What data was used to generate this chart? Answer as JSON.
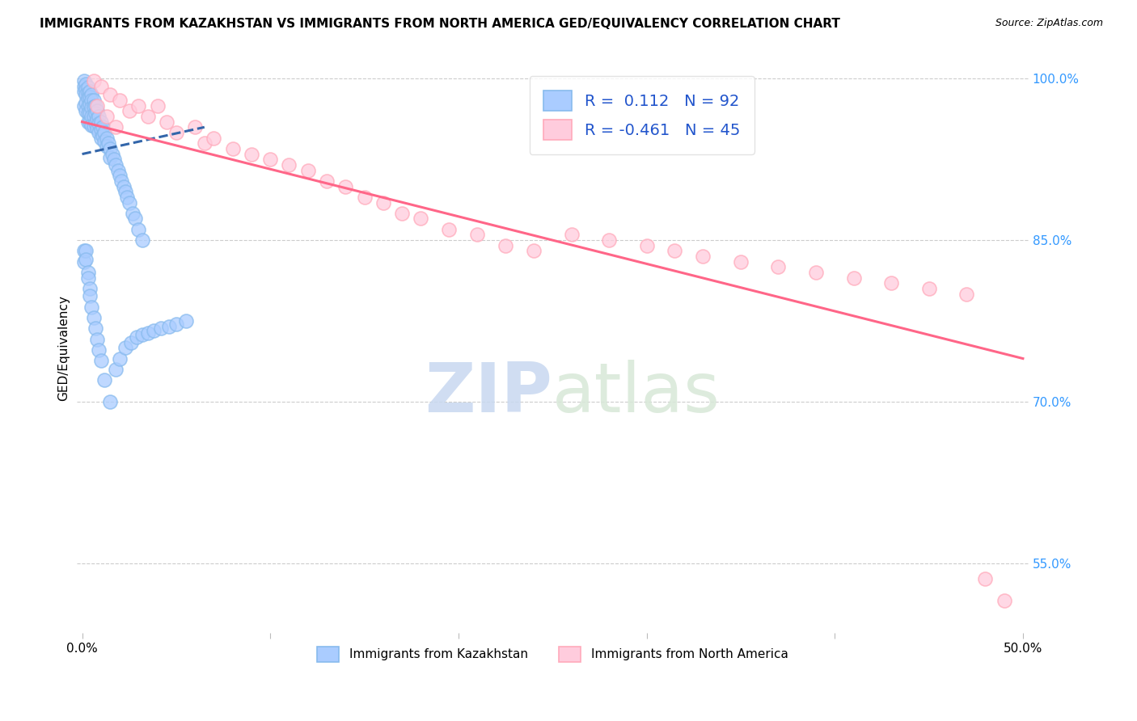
{
  "title": "IMMIGRANTS FROM KAZAKHSTAN VS IMMIGRANTS FROM NORTH AMERICA GED/EQUIVALENCY CORRELATION CHART",
  "source": "Source: ZipAtlas.com",
  "ylabel": "GED/Equivalency",
  "watermark_zip": "ZIP",
  "watermark_atlas": "atlas",
  "xlim": [
    -0.003,
    0.503
  ],
  "ylim": [
    0.485,
    1.015
  ],
  "xticks": [
    0.0,
    0.1,
    0.2,
    0.3,
    0.4,
    0.5
  ],
  "xticklabels": [
    "0.0%",
    "",
    "",
    "",
    "",
    "50.0%"
  ],
  "yticks_right": [
    1.0,
    0.85,
    0.7,
    0.55
  ],
  "yticklabels_right": [
    "100.0%",
    "85.0%",
    "70.0%",
    "55.0%"
  ],
  "hlines": [
    1.0,
    0.85,
    0.7,
    0.55
  ],
  "legend_r_blue": " 0.112",
  "legend_n_blue": "92",
  "legend_r_pink": "-0.461",
  "legend_n_pink": "45",
  "blue_color": "#88BBEE",
  "pink_color": "#FFAABB",
  "blue_fill": "#AACCFF",
  "pink_fill": "#FFCCDD",
  "blue_line_color": "#3366AA",
  "pink_line_color": "#FF6688",
  "blue_x": [
    0.001,
    0.001,
    0.001,
    0.001,
    0.002,
    0.002,
    0.002,
    0.002,
    0.002,
    0.003,
    0.003,
    0.003,
    0.003,
    0.003,
    0.003,
    0.004,
    0.004,
    0.004,
    0.004,
    0.004,
    0.005,
    0.005,
    0.005,
    0.005,
    0.005,
    0.006,
    0.006,
    0.006,
    0.006,
    0.007,
    0.007,
    0.007,
    0.008,
    0.008,
    0.008,
    0.009,
    0.009,
    0.009,
    0.01,
    0.01,
    0.01,
    0.011,
    0.011,
    0.012,
    0.012,
    0.013,
    0.013,
    0.014,
    0.015,
    0.015,
    0.016,
    0.017,
    0.018,
    0.019,
    0.02,
    0.021,
    0.022,
    0.023,
    0.024,
    0.025,
    0.027,
    0.028,
    0.03,
    0.032,
    0.001,
    0.001,
    0.002,
    0.002,
    0.003,
    0.003,
    0.004,
    0.004,
    0.005,
    0.006,
    0.007,
    0.008,
    0.009,
    0.01,
    0.012,
    0.015,
    0.018,
    0.02,
    0.023,
    0.026,
    0.029,
    0.032,
    0.035,
    0.038,
    0.042,
    0.046,
    0.05,
    0.055
  ],
  "blue_y": [
    0.998,
    0.993,
    0.988,
    0.975,
    0.995,
    0.99,
    0.985,
    0.978,
    0.97,
    0.992,
    0.987,
    0.982,
    0.975,
    0.968,
    0.96,
    0.988,
    0.983,
    0.976,
    0.968,
    0.96,
    0.985,
    0.98,
    0.973,
    0.965,
    0.957,
    0.98,
    0.974,
    0.965,
    0.956,
    0.975,
    0.968,
    0.959,
    0.97,
    0.963,
    0.954,
    0.965,
    0.958,
    0.95,
    0.96,
    0.953,
    0.945,
    0.955,
    0.947,
    0.95,
    0.942,
    0.945,
    0.937,
    0.94,
    0.935,
    0.927,
    0.93,
    0.925,
    0.92,
    0.915,
    0.91,
    0.905,
    0.9,
    0.895,
    0.89,
    0.885,
    0.875,
    0.87,
    0.86,
    0.85,
    0.84,
    0.83,
    0.84,
    0.832,
    0.82,
    0.815,
    0.805,
    0.798,
    0.788,
    0.778,
    0.768,
    0.758,
    0.748,
    0.738,
    0.72,
    0.7,
    0.73,
    0.74,
    0.75,
    0.755,
    0.76,
    0.762,
    0.764,
    0.766,
    0.768,
    0.77,
    0.772,
    0.775
  ],
  "pink_x": [
    0.006,
    0.008,
    0.01,
    0.013,
    0.015,
    0.018,
    0.02,
    0.025,
    0.03,
    0.035,
    0.04,
    0.045,
    0.05,
    0.06,
    0.065,
    0.07,
    0.08,
    0.09,
    0.1,
    0.11,
    0.12,
    0.13,
    0.14,
    0.15,
    0.16,
    0.17,
    0.18,
    0.195,
    0.21,
    0.225,
    0.24,
    0.26,
    0.28,
    0.3,
    0.315,
    0.33,
    0.35,
    0.37,
    0.39,
    0.41,
    0.43,
    0.45,
    0.47,
    0.48,
    0.49
  ],
  "pink_y": [
    0.998,
    0.975,
    0.993,
    0.965,
    0.985,
    0.955,
    0.98,
    0.97,
    0.975,
    0.965,
    0.975,
    0.96,
    0.95,
    0.955,
    0.94,
    0.945,
    0.935,
    0.93,
    0.925,
    0.92,
    0.915,
    0.905,
    0.9,
    0.89,
    0.885,
    0.875,
    0.87,
    0.86,
    0.855,
    0.845,
    0.84,
    0.855,
    0.85,
    0.845,
    0.84,
    0.835,
    0.83,
    0.825,
    0.82,
    0.815,
    0.81,
    0.805,
    0.8,
    0.535,
    0.515
  ],
  "blue_trend_x": [
    0.0,
    0.065
  ],
  "blue_trend_y": [
    0.93,
    0.955
  ],
  "pink_trend_x": [
    0.0,
    0.5
  ],
  "pink_trend_y": [
    0.96,
    0.74
  ]
}
